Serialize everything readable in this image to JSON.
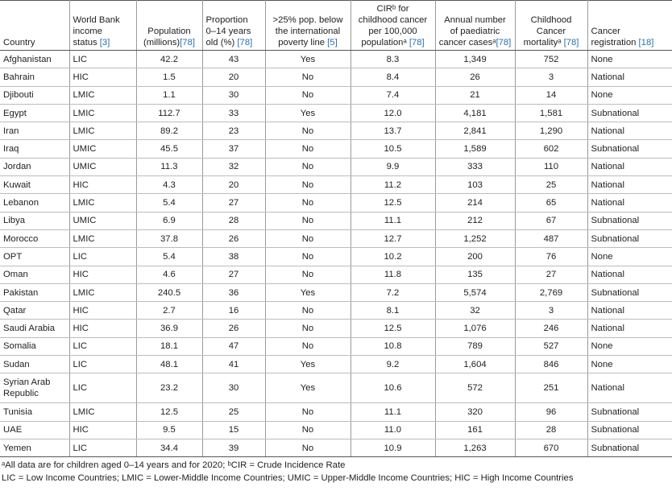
{
  "headers": [
    {
      "parts": [
        "Country"
      ],
      "ref": ""
    },
    {
      "parts": [
        "World Bank",
        "income",
        "status "
      ],
      "ref": "[3]"
    },
    {
      "parts": [
        "Population",
        "(millions)"
      ],
      "ref": "[78]"
    },
    {
      "parts": [
        "Proportion",
        "0–14 years",
        "old (%) "
      ],
      "ref": "[78]"
    },
    {
      "parts": [
        ">25% pop. below",
        "the international",
        "poverty line "
      ],
      "ref": "[5]"
    },
    {
      "parts": [
        "CIRᵇ for",
        "childhood cancer",
        "per 100,000",
        "populationᵃ "
      ],
      "ref": "[78]"
    },
    {
      "parts": [
        "Annual number",
        "of paediatric",
        "cancer casesᵃ"
      ],
      "ref": "[78]"
    },
    {
      "parts": [
        "Childhood",
        "Cancer",
        "mortalityᵃ "
      ],
      "ref": "[78]"
    },
    {
      "parts": [
        "Cancer",
        "registration "
      ],
      "ref": "[18]"
    }
  ],
  "rows": [
    [
      "Afghanistan",
      "LIC",
      "42.2",
      "43",
      "Yes",
      "8.3",
      "1,349",
      "752",
      "None"
    ],
    [
      "Bahrain",
      "HIC",
      "1.5",
      "20",
      "No",
      "8.4",
      "26",
      "3",
      "National"
    ],
    [
      "Djibouti",
      "LMIC",
      "1.1",
      "30",
      "No",
      "7.4",
      "21",
      "14",
      "None"
    ],
    [
      "Egypt",
      "LMIC",
      "112.7",
      "33",
      "Yes",
      "12.0",
      "4,181",
      "1,581",
      "Subnational"
    ],
    [
      "Iran",
      "LMIC",
      "89.2",
      "23",
      "No",
      "13.7",
      "2,841",
      "1,290",
      "National"
    ],
    [
      "Iraq",
      "UMIC",
      "45.5",
      "37",
      "No",
      "10.5",
      "1,589",
      "602",
      "Subnational"
    ],
    [
      "Jordan",
      "UMIC",
      "11.3",
      "32",
      "No",
      "9.9",
      "333",
      "110",
      "National"
    ],
    [
      "Kuwait",
      "HIC",
      "4.3",
      "20",
      "No",
      "11.2",
      "103",
      "25",
      "National"
    ],
    [
      "Lebanon",
      "LMIC",
      "5.4",
      "27",
      "No",
      "12.5",
      "214",
      "65",
      "National"
    ],
    [
      "Libya",
      "UMIC",
      "6.9",
      "28",
      "No",
      "11.1",
      "212",
      "67",
      "Subnational"
    ],
    [
      "Morocco",
      "LMIC",
      "37.8",
      "26",
      "No",
      "12.7",
      "1,252",
      "487",
      "Subnational"
    ],
    [
      "OPT",
      "LIC",
      "5.4",
      "38",
      "No",
      "10.2",
      "200",
      "76",
      "None"
    ],
    [
      "Oman",
      "HIC",
      "4.6",
      "27",
      "No",
      "11.8",
      "135",
      "27",
      "National"
    ],
    [
      "Pakistan",
      "LMIC",
      "240.5",
      "36",
      "Yes",
      "7.2",
      "5,574",
      "2,769",
      "Subnational"
    ],
    [
      "Qatar",
      "HIC",
      "2.7",
      "16",
      "No",
      "8.1",
      "32",
      "3",
      "National"
    ],
    [
      "Saudi Arabia",
      "HIC",
      "36.9",
      "26",
      "No",
      "12.5",
      "1,076",
      "246",
      "National"
    ],
    [
      "Somalia",
      "LIC",
      "18.1",
      "47",
      "No",
      "10.8",
      "789",
      "527",
      "None"
    ],
    [
      "Sudan",
      "LIC",
      "48.1",
      "41",
      "Yes",
      "9.2",
      "1,604",
      "846",
      "None"
    ],
    [
      "Syrian Arab Republic",
      "LIC",
      "23.2",
      "30",
      "Yes",
      "10.6",
      "572",
      "251",
      "National"
    ],
    [
      "Tunisia",
      "LMIC",
      "12.5",
      "25",
      "No",
      "11.1",
      "320",
      "96",
      "Subnational"
    ],
    [
      "UAE",
      "HIC",
      "9.5",
      "15",
      "No",
      "11.0",
      "161",
      "28",
      "Subnational"
    ],
    [
      "Yemen",
      "LIC",
      "34.4",
      "39",
      "No",
      "10.9",
      "1,263",
      "670",
      "Subnational"
    ]
  ],
  "footnotes": [
    "ᵃAll data are for children aged 0–14 years and for 2020; ᵇCIR = Crude Incidence Rate",
    "LIC = Low Income Countries; LMIC = Lower-Middle Income Countries; UMIC = Upper-Middle Income Countries; HIC = High Income Countries"
  ]
}
